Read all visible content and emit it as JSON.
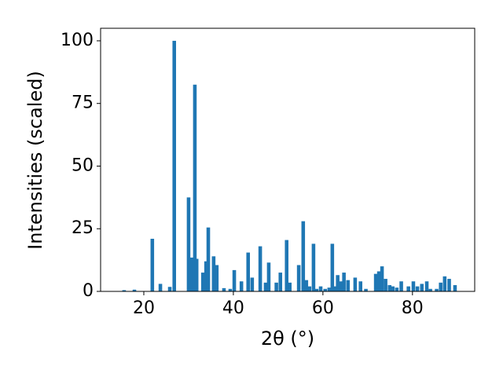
{
  "chart_data": {
    "type": "bar",
    "xlabel": "2θ (°)",
    "ylabel": "Intensities (scaled)",
    "color": "#1f77b4",
    "x": [
      15.6,
      17.9,
      21.9,
      23.7,
      25.8,
      26.8,
      30.0,
      30.7,
      31.4,
      31.8,
      33.2,
      33.9,
      34.4,
      35.6,
      36.3,
      37.9,
      39.3,
      40.2,
      41.8,
      43.3,
      44.2,
      46.0,
      47.2,
      47.9,
      49.6,
      50.5,
      51.9,
      52.6,
      54.6,
      55.6,
      56.3,
      57.0,
      57.9,
      58.6,
      59.5,
      60.5,
      61.4,
      62.1,
      62.8,
      63.3,
      64.0,
      64.7,
      65.6,
      67.2,
      68.4,
      69.6,
      71.8,
      72.5,
      73.2,
      74.0,
      74.9,
      75.6,
      76.5,
      77.5,
      79.1,
      80.2,
      81.1,
      82.1,
      83.2,
      84.0,
      85.4,
      86.3,
      87.2,
      88.2,
      89.5
    ],
    "values": [
      0.5,
      0.7,
      21,
      3,
      1.8,
      100,
      37.5,
      13.5,
      82.5,
      13,
      7.5,
      12,
      25.5,
      14,
      10.5,
      1.3,
      1,
      8.5,
      4,
      15.5,
      5.5,
      18,
      3.5,
      11.5,
      3.5,
      7.5,
      20.5,
      3.5,
      10.5,
      28,
      4.5,
      2,
      19,
      1,
      2,
      1,
      1.5,
      19,
      2,
      6.5,
      4,
      7.5,
      4.5,
      5.5,
      4,
      1,
      7,
      8,
      10,
      5,
      2.5,
      2,
      1.5,
      4,
      2,
      4,
      2,
      3,
      4,
      1,
      1,
      3.5,
      6,
      5,
      2.5
    ],
    "xlim": [
      10.35,
      93.9
    ],
    "ylim": [
      0,
      105
    ],
    "xticks": [
      20,
      40,
      60,
      80
    ],
    "yticks": [
      0,
      25,
      50,
      75,
      100
    ]
  }
}
